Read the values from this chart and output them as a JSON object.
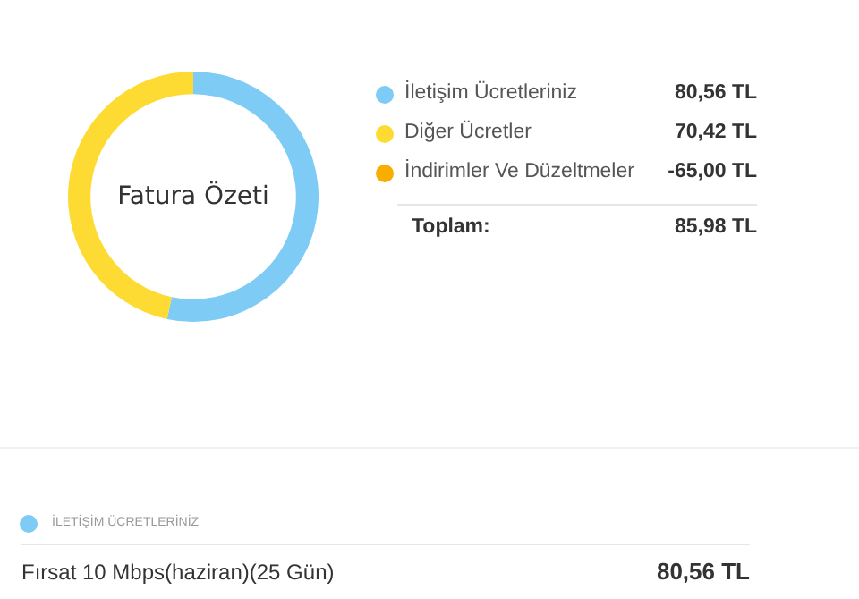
{
  "chart_data": {
    "type": "donut",
    "title": "Fatura Özeti",
    "categories": [
      "İletişim Ücretleriniz",
      "Diğer Ücretler",
      "İndirimler Ve Düzeltmeler"
    ],
    "values": [
      80.56,
      70.42,
      null
    ],
    "colors": [
      "#7ecbf5",
      "#fedb33",
      "#f9ad00"
    ],
    "value_labels": [
      "80,56 TL",
      "70,42 TL",
      "-65,00 TL"
    ],
    "legend": "right",
    "annotations": [
      "Toplam:",
      "85,98 TL",
      "İLETİŞİM ÜCRETLERİNİZ",
      "Fırsat 10 Mbps(haziran)(25 Gün)",
      "80,56 TL"
    ]
  }
}
